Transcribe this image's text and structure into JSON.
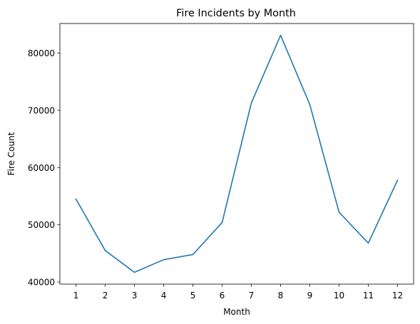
{
  "chart_data": {
    "type": "line",
    "title": "Fire Incidents by Month",
    "xlabel": "Month",
    "ylabel": "Fire Count",
    "x": [
      1,
      2,
      3,
      4,
      5,
      6,
      7,
      8,
      9,
      10,
      11,
      12
    ],
    "series": [
      {
        "values": [
          54500,
          45500,
          41700,
          43900,
          44800,
          50400,
          71300,
          83100,
          71000,
          52200,
          46800,
          57800
        ]
      }
    ],
    "xticks": [
      "1",
      "2",
      "3",
      "4",
      "5",
      "6",
      "7",
      "8",
      "9",
      "10",
      "11",
      "12"
    ],
    "yticks": [
      40000,
      50000,
      60000,
      70000,
      80000
    ],
    "xlim": [
      0.45,
      12.55
    ],
    "ylim": [
      39630,
      85170
    ],
    "grid": false,
    "line_color": "#1f77b4"
  }
}
